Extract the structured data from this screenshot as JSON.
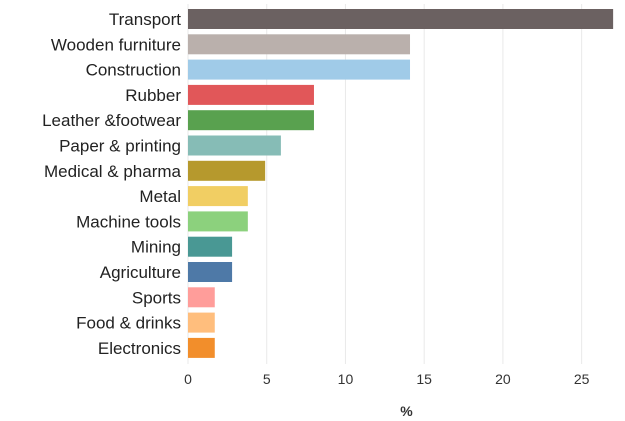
{
  "chart_data": {
    "type": "bar",
    "orientation": "horizontal",
    "categories": [
      "Transport",
      "Wooden furniture",
      "Construction",
      "Rubber",
      "Leather &footwear",
      "Paper & printing",
      "Medical & pharma",
      "Metal",
      "Machine tools",
      "Mining",
      "Agriculture",
      "Sports",
      "Food & drinks",
      "Electronics"
    ],
    "values": [
      27.0,
      14.1,
      14.1,
      8.0,
      8.0,
      5.9,
      4.9,
      3.8,
      3.8,
      2.8,
      2.8,
      1.7,
      1.7,
      1.7
    ],
    "colors": [
      "#6b6161",
      "#bab0ac",
      "#a0cbe8",
      "#e15759",
      "#59a14f",
      "#86bcb6",
      "#b6992d",
      "#f1ce63",
      "#8cd17d",
      "#499894",
      "#4e79a7",
      "#ff9d9a",
      "#ffbe7d",
      "#f28e2b"
    ],
    "title": "",
    "xlabel": "%",
    "ylabel": "",
    "xlim": [
      0,
      27.5
    ],
    "xticks": [
      0,
      5,
      10,
      15,
      20,
      25
    ],
    "xtick_labels": [
      "0",
      "5",
      "10",
      "15",
      "20",
      "25"
    ],
    "grid": "vertical"
  }
}
